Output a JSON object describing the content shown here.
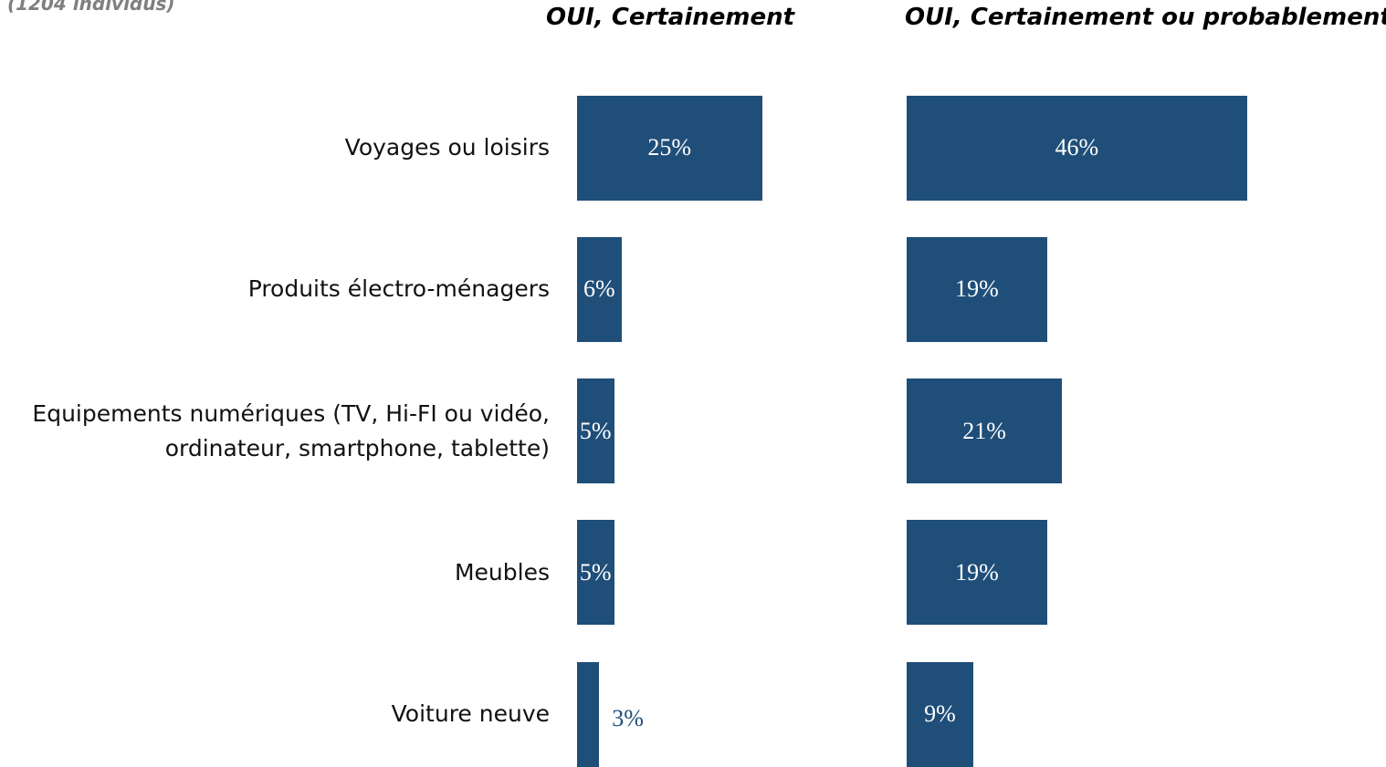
{
  "chart_data": {
    "type": "bar",
    "subtitle": "(1204 individus)",
    "categories": [
      "Voyages ou loisirs",
      "Produits électro-ménagers",
      "Equipements numériques (TV, Hi-FI ou vidéo, ordinateur, smartphone, tablette)",
      "Meubles",
      "Voiture neuve"
    ],
    "series": [
      {
        "name": "OUI, Certainement",
        "color": "#1f4e79",
        "values": [
          25,
          6,
          5,
          5,
          3
        ],
        "value_labels": [
          "25%",
          "6%",
          "5%",
          "5%",
          "3%"
        ]
      },
      {
        "name": "OUI, Certainement ou probablement",
        "color": "#1f4e79",
        "values": [
          46,
          19,
          21,
          19,
          9
        ],
        "value_labels": [
          "46%",
          "19%",
          "21%",
          "19%",
          "9%"
        ]
      }
    ]
  }
}
